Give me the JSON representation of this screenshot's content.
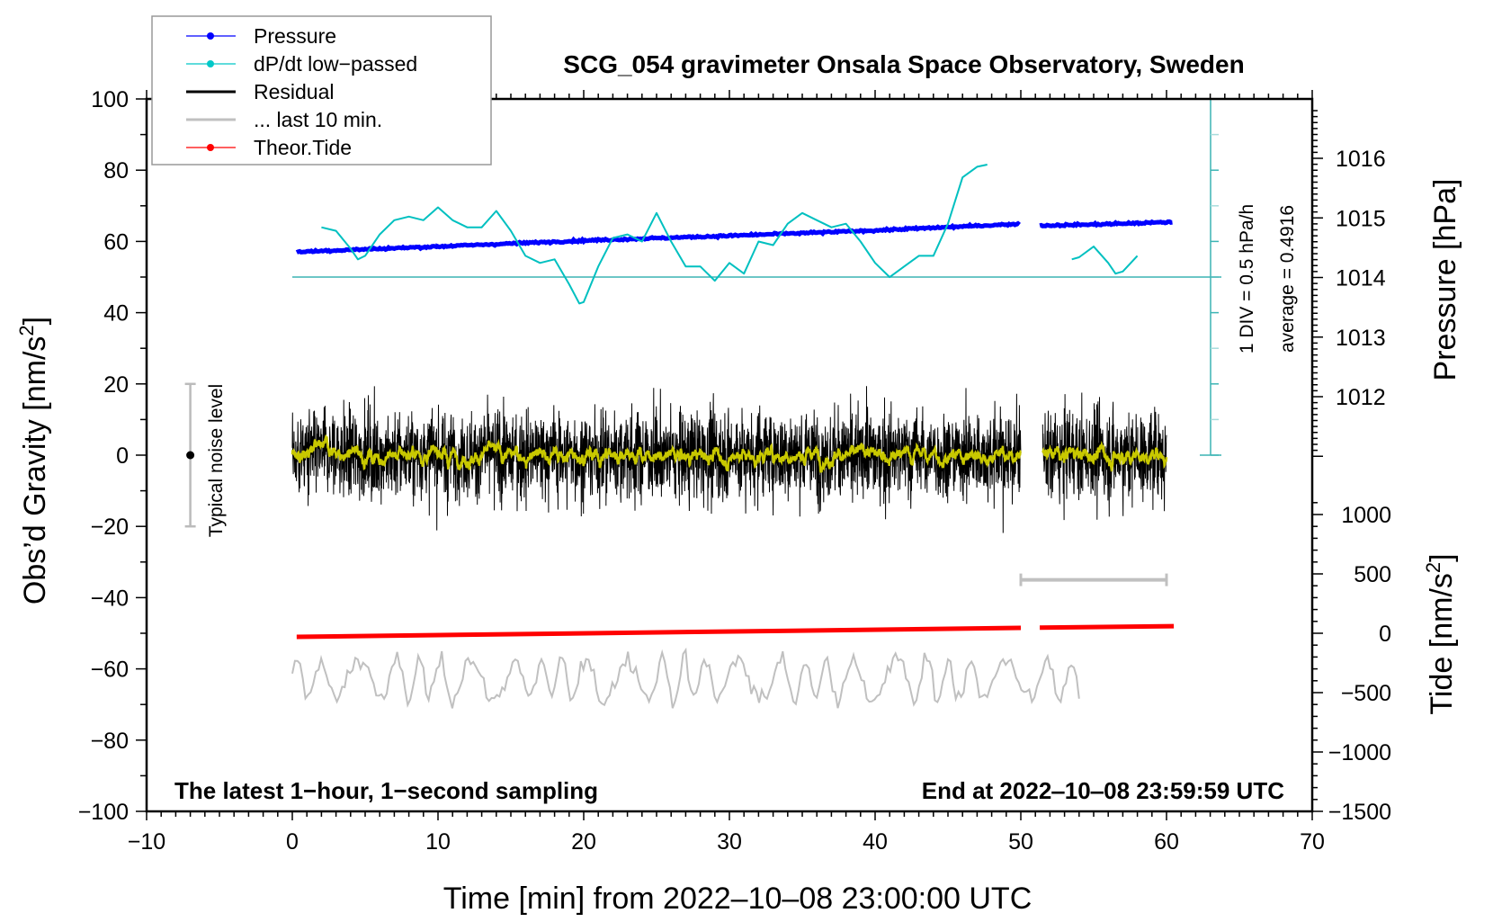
{
  "chart_data": {
    "type": "line",
    "title": "SCG_054 gravimeter Onsala Space Observatory, Sweden",
    "xlabel": "Time [min] from 2022‒10‒08 23:00:00 UTC",
    "ylabel": "Obs’d Gravity [nm/s",
    "ylabel_sup": "2",
    "ylabel_end": "]",
    "y2label": "Pressure [hPa]",
    "y3label": "Tide [nm/s",
    "y3label_sup": "2",
    "y3label_end": "]",
    "xlim": [
      -10,
      70
    ],
    "ylim": [
      -100,
      100
    ],
    "pressure_lim_ticks": [
      1012,
      1013,
      1014,
      1015,
      1016
    ],
    "tide_ticks": [
      -1500,
      -1000,
      -500,
      0,
      500,
      1000
    ],
    "x_ticks": [
      -10,
      0,
      10,
      20,
      30,
      40,
      50,
      60,
      70
    ],
    "x_tick_labels": [
      "−10",
      "0",
      "10",
      "20",
      "30",
      "40",
      "50",
      "60",
      "70"
    ],
    "y_ticks": [
      -100,
      -80,
      -60,
      -40,
      -20,
      0,
      20,
      40,
      60,
      80,
      100
    ],
    "y_tick_labels": [
      "−100",
      "−80",
      "−60",
      "−40",
      "−20",
      "0",
      "20",
      "40",
      "60",
      "80",
      "100"
    ],
    "tide_tick_labels": [
      "−1500",
      "−1000",
      "−500",
      "0",
      "500",
      "1000"
    ],
    "legend": {
      "placement": "top-left",
      "entries": [
        {
          "label": "Pressure",
          "color": "#0000ff",
          "marker": true
        },
        {
          "label": "dP/dt low−passed",
          "color": "#00c8c8",
          "marker": true
        },
        {
          "label": "Residual",
          "color": "#000000",
          "marker": false
        },
        {
          "label": "... last 10 min.",
          "color": "#c0c0c0",
          "marker": false
        },
        {
          "label": "Theor.Tide",
          "color": "#ff0000",
          "marker": true
        }
      ]
    },
    "annotations": {
      "bottom_left": "The latest 1−hour, 1−second sampling",
      "bottom_right": "End at 2022‒10‒08 23:59:59 UTC",
      "noise_label": "Typical noise level",
      "div_label": "1 DIV = 0.5 hPa/h",
      "average_label": "average = 0.4916"
    },
    "dpdt_scale": {
      "average": 0.4916,
      "per_div": 0.5,
      "baseline_gravity": 50,
      "gravity_per_div": 10
    },
    "series": [
      {
        "name": "Pressure",
        "unit": "hPa",
        "color": "#0000ff",
        "segments": [
          {
            "x": [
              0.3,
              10,
              20,
              30,
              40,
              50
            ],
            "y": [
              1014.43,
              1014.52,
              1014.62,
              1014.7,
              1014.79,
              1014.9
            ]
          },
          {
            "x": [
              51.3,
              55,
              60.5
            ],
            "y": [
              1014.87,
              1014.89,
              1014.93
            ]
          }
        ]
      },
      {
        "name": "dP/dt low-passed",
        "unit": "hPa/h",
        "color": "#00c0c0",
        "segments": [
          {
            "x": [
              2,
              3,
              4,
              4.5,
              5,
              6,
              7,
              8,
              9,
              10,
              11,
              12,
              13,
              14,
              15,
              16,
              17,
              18,
              19,
              19.7,
              20,
              21,
              22,
              23,
              24,
              25,
              26,
              27,
              28,
              29,
              30,
              31,
              32,
              33,
              34,
              35,
              36,
              37,
              38,
              39,
              40,
              41,
              42,
              43,
              44,
              45,
              46,
              47,
              47.7
            ],
            "y": [
              1.19,
              1.14,
              0.89,
              0.74,
              0.79,
              1.09,
              1.29,
              1.34,
              1.29,
              1.47,
              1.29,
              1.19,
              1.19,
              1.42,
              1.14,
              0.79,
              0.69,
              0.74,
              0.39,
              0.12,
              0.14,
              0.64,
              1.04,
              1.09,
              0.99,
              1.39,
              0.99,
              0.64,
              0.64,
              0.44,
              0.69,
              0.54,
              0.99,
              0.94,
              1.24,
              1.39,
              1.29,
              1.19,
              1.24,
              0.99,
              0.69,
              0.49,
              0.64,
              0.79,
              0.79,
              1.24,
              1.89,
              2.04,
              2.07
            ]
          },
          {
            "x": [
              53.5,
              54,
              55,
              56,
              56.5,
              57,
              58
            ],
            "y": [
              0.74,
              0.77,
              0.92,
              0.69,
              0.54,
              0.57,
              0.79
            ]
          }
        ]
      },
      {
        "name": "Residual",
        "unit": "nm/s2",
        "color": "#000000",
        "segments_x": [
          [
            0,
            50
          ],
          [
            51.5,
            60
          ]
        ],
        "noise_std": 5,
        "mean": 0
      },
      {
        "name": "Residual smoothed",
        "color": "#c8c800"
      },
      {
        "name": "last 10 min.",
        "color": "#c0c0c0",
        "x_range": [
          0,
          54
        ],
        "center": -63,
        "amplitude": 8
      },
      {
        "name": "Last 10 min range bar",
        "color": "#c0c0c0",
        "x": [
          50,
          60
        ],
        "y": -35
      },
      {
        "name": "Theor.Tide",
        "unit": "nm/s2",
        "color": "#ff0000",
        "segments": [
          {
            "x": [
              0.3,
              50
            ],
            "y": [
              -30,
              45
            ]
          },
          {
            "x": [
              51.3,
              60.5
            ],
            "y": [
              47,
              60
            ]
          }
        ]
      },
      {
        "name": "Typical noise level",
        "x": -7,
        "y": 0,
        "range": [
          -20,
          20
        ]
      }
    ],
    "grid": false
  }
}
